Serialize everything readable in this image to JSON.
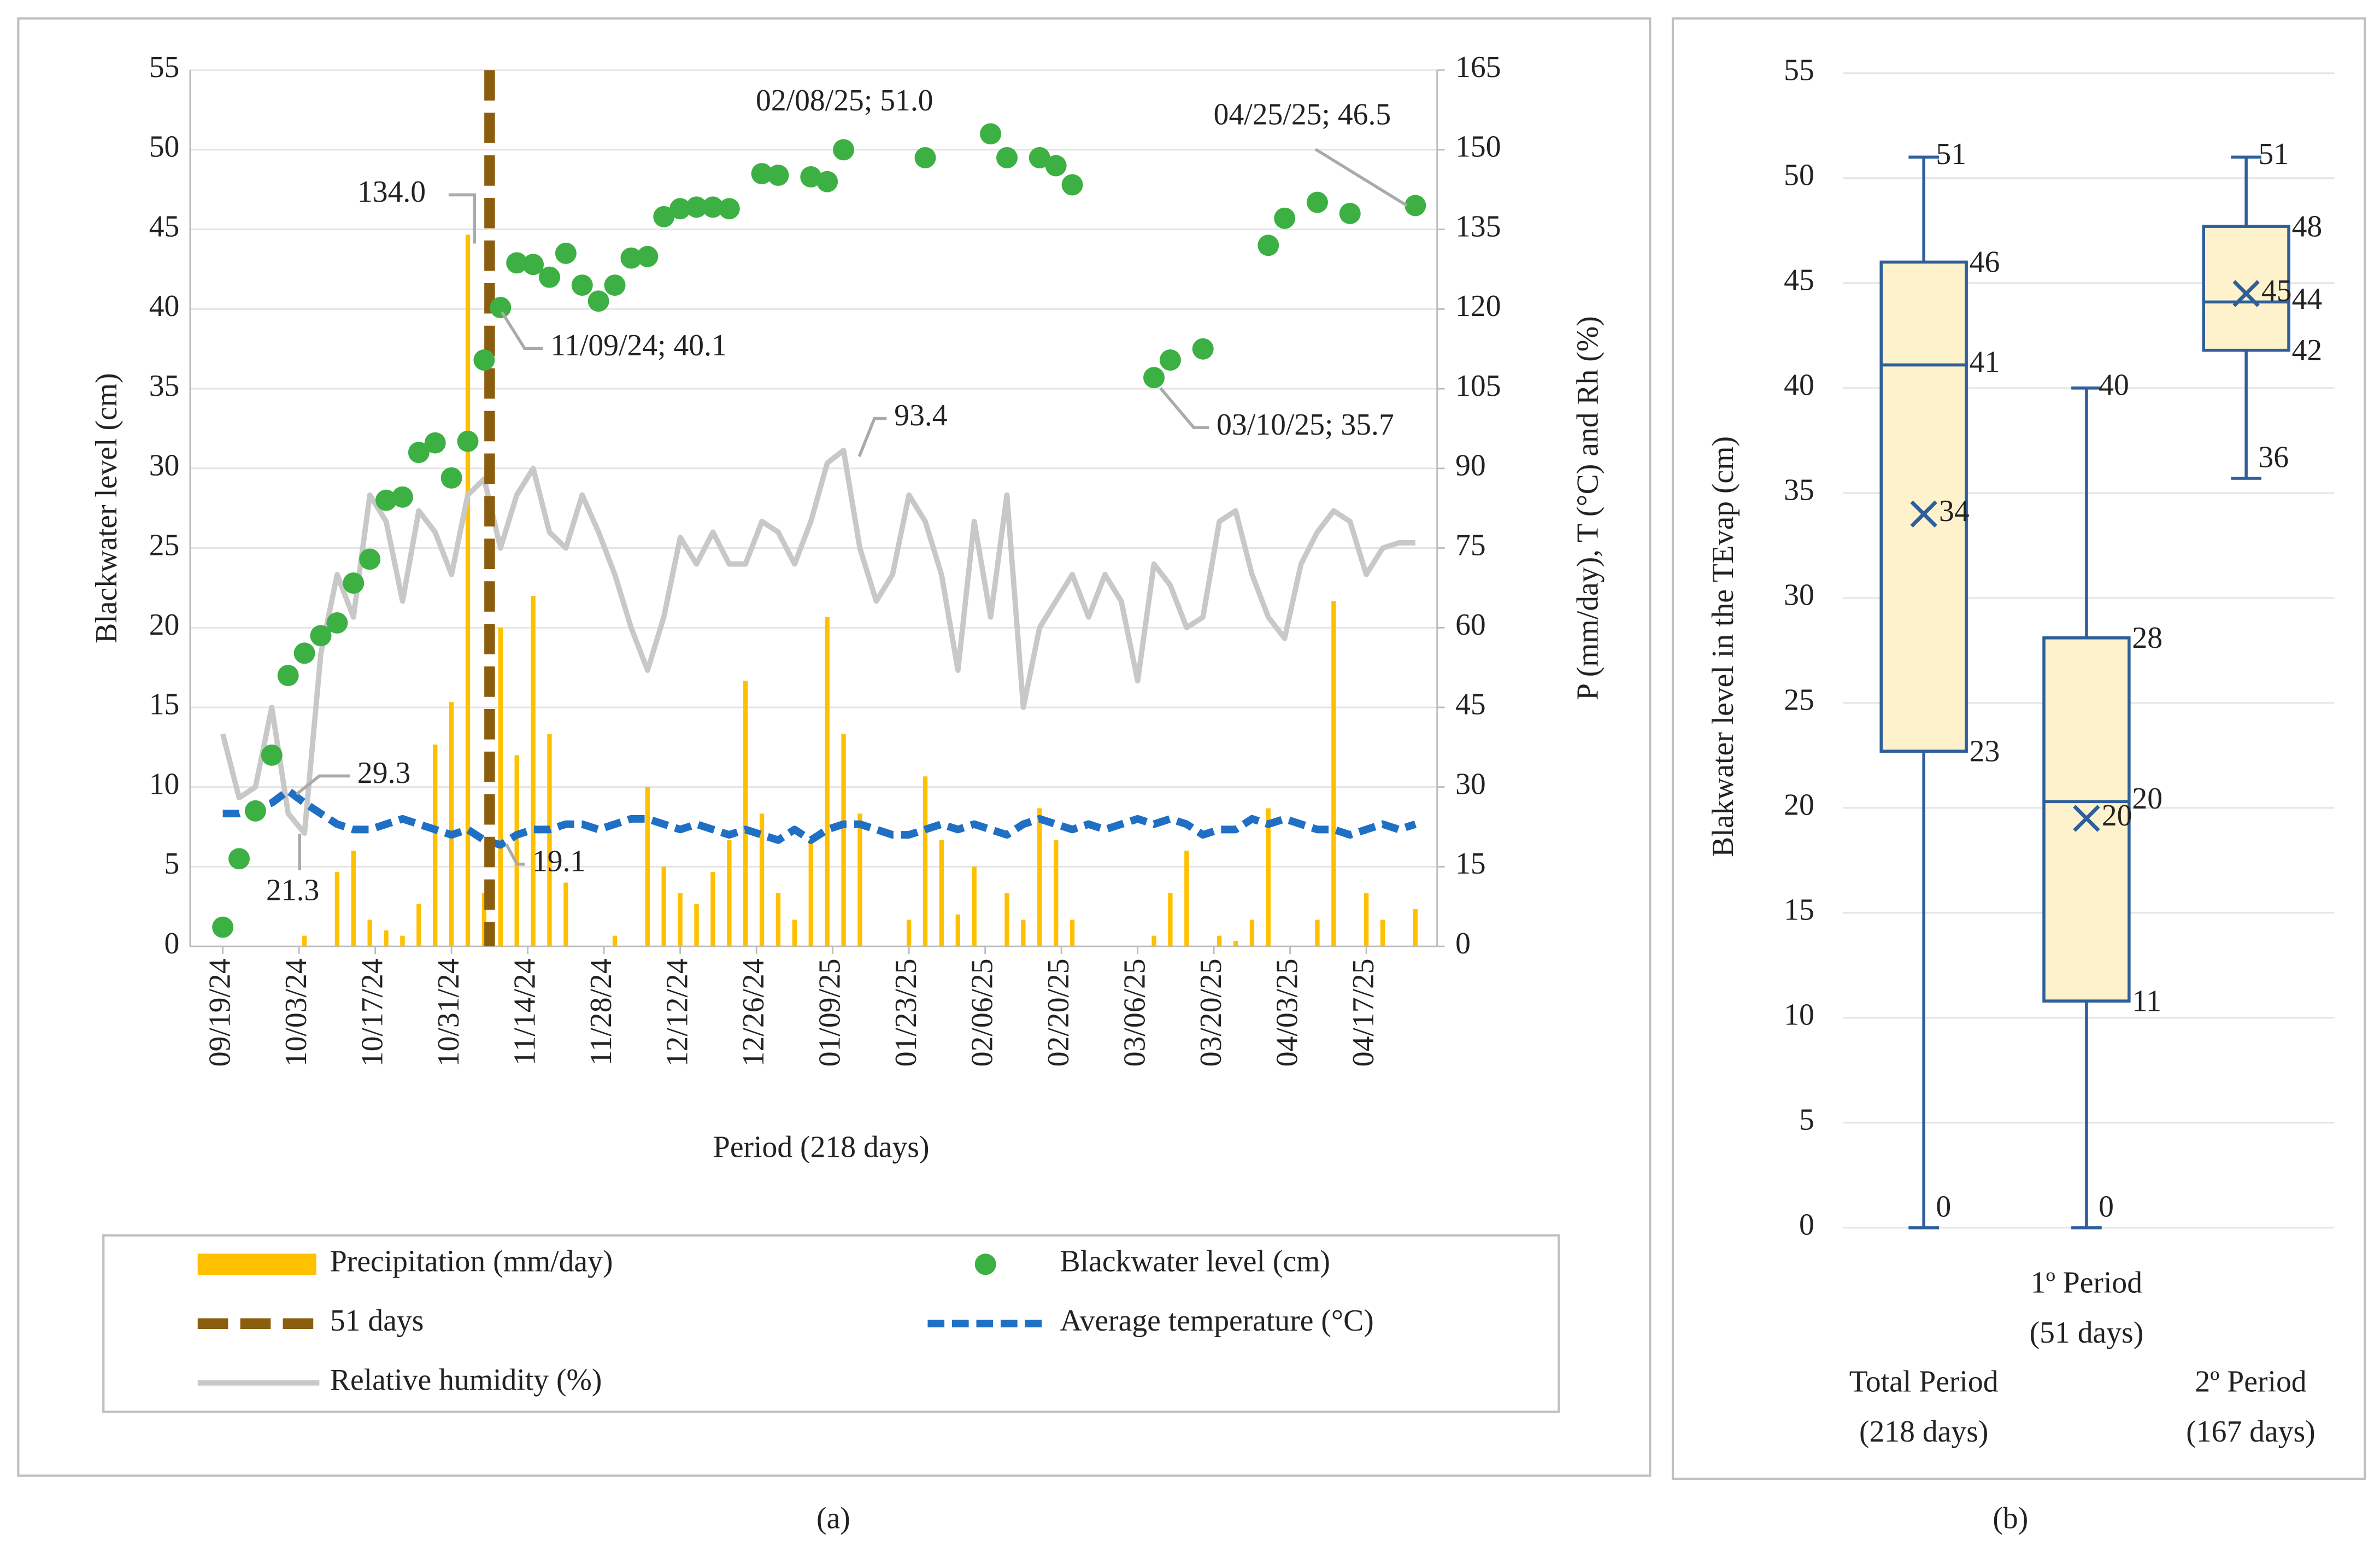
{
  "chart_data": [
    {
      "type": "combo",
      "panel_label": "(a)",
      "xlabel": "Period (218 days)",
      "ylabel": "Blackwater level (cm)",
      "y2label": "P (mm/day), T (°C) and Rh (%)",
      "x": [
        "09/19/24",
        "09/22/24",
        "09/25/24",
        "09/28/24",
        "10/01/24",
        "10/04/24",
        "10/07/24",
        "10/10/24",
        "10/13/24",
        "10/16/24",
        "10/19/24",
        "10/22/24",
        "10/25/24",
        "10/28/24",
        "10/31/24",
        "11/03/24",
        "11/06/24",
        "11/09/24",
        "11/12/24",
        "11/15/24",
        "11/18/24",
        "11/21/24",
        "11/24/24",
        "11/27/24",
        "11/30/24",
        "12/03/24",
        "12/06/24",
        "12/09/24",
        "12/12/24",
        "12/15/24",
        "12/18/24",
        "12/21/24",
        "12/24/24",
        "12/27/24",
        "12/30/24",
        "01/02/25",
        "01/05/25",
        "01/08/25",
        "01/11/25",
        "01/14/25",
        "01/17/25",
        "01/20/25",
        "01/23/25",
        "01/26/25",
        "01/29/25",
        "02/01/25",
        "02/04/25",
        "02/07/25",
        "02/10/25",
        "02/13/25",
        "02/16/25",
        "02/19/25",
        "02/22/25",
        "02/25/25",
        "02/28/25",
        "03/03/25",
        "03/06/25",
        "03/09/25",
        "03/12/25",
        "03/15/25",
        "03/18/25",
        "03/21/25",
        "03/24/25",
        "03/27/25",
        "03/30/25",
        "04/02/25",
        "04/05/25",
        "04/08/25",
        "04/11/25",
        "04/14/25",
        "04/17/25",
        "04/20/25",
        "04/23/25",
        "04/26/25"
      ],
      "xlim": [
        "09/13/24",
        "04/30/25"
      ],
      "xticks": [
        "09/19/24",
        "10/03/24",
        "10/17/24",
        "10/31/24",
        "11/14/24",
        "11/28/24",
        "12/12/24",
        "12/26/24",
        "01/09/25",
        "01/23/25",
        "02/06/25",
        "02/20/25",
        "03/06/25",
        "03/20/25",
        "04/03/25",
        "04/17/25"
      ],
      "ylim": [
        0,
        55
      ],
      "yticks": [
        0,
        5,
        10,
        15,
        20,
        25,
        30,
        35,
        40,
        45,
        50,
        55
      ],
      "y2lim": [
        0,
        165
      ],
      "y2ticks": [
        0,
        15,
        30,
        45,
        60,
        75,
        90,
        105,
        120,
        135,
        150,
        165
      ],
      "grid": true,
      "legend": "bottom",
      "series": [
        {
          "name": "Precipitation (mm/day)",
          "type": "bar",
          "axis": "y2",
          "color": "#ffc000",
          "values": [
            0,
            0,
            0,
            0,
            0,
            2,
            0,
            14,
            18,
            5,
            3,
            2,
            8,
            38,
            46,
            134,
            10,
            60,
            36,
            66,
            40,
            12,
            0,
            0,
            2,
            0,
            30,
            15,
            10,
            8,
            14,
            20,
            50,
            25,
            10,
            5,
            20,
            62,
            40,
            25,
            0,
            0,
            5,
            32,
            20,
            6,
            15,
            0,
            10,
            5,
            26,
            20,
            5,
            0,
            0,
            0,
            0,
            2,
            10,
            18,
            0,
            2,
            1,
            5,
            26,
            0,
            0,
            5,
            65,
            0,
            10,
            5,
            0,
            7
          ]
        },
        {
          "name": "Blackwater level (cm)",
          "type": "scatter",
          "color": "#3cb043",
          "values": [
            1.2,
            5.5,
            8.5,
            12,
            17,
            18.4,
            19.5,
            20.3,
            22.8,
            24.3,
            28,
            28.2,
            31,
            31.6,
            29.4,
            31.7,
            36.8,
            40.1,
            42.9,
            42.8,
            42,
            43.5,
            41.5,
            40.5,
            41.5,
            43.2,
            43.3,
            45.8,
            46.3,
            46.4,
            46.4,
            46.3,
            null,
            48.5,
            48.4,
            null,
            48.3,
            48,
            50,
            null,
            null,
            null,
            null,
            49.5,
            null,
            null,
            null,
            51,
            49.5,
            null,
            49.5,
            49,
            47.8,
            null,
            null,
            null,
            null,
            35.7,
            36.8,
            null,
            37.5,
            null,
            null,
            null,
            44,
            45.7,
            null,
            46.7,
            null,
            46,
            null,
            null,
            null,
            46.5
          ]
        },
        {
          "name": "Average temperature (°C)",
          "type": "line",
          "axis": "y2",
          "color": "#1f6fc5",
          "dash": true,
          "values": [
            25,
            25,
            26,
            27,
            29.3,
            27,
            25,
            23,
            22,
            22,
            23,
            24,
            23,
            22,
            21,
            22,
            20,
            19.1,
            21,
            22,
            22,
            23,
            23,
            22,
            23,
            24,
            24,
            23,
            22,
            23,
            22,
            21,
            22,
            21,
            20,
            22,
            20,
            22,
            23,
            23,
            22,
            21,
            21,
            22,
            23,
            22,
            23,
            22,
            21,
            23,
            24,
            23,
            22,
            23,
            22,
            23,
            24,
            23,
            24,
            23,
            21,
            22,
            22,
            24,
            23,
            24,
            23,
            22,
            22,
            21,
            22,
            23,
            22,
            23
          ]
        },
        {
          "name": "Relative humidity (%)",
          "type": "line",
          "axis": "y2",
          "color": "#c8c8c8",
          "dash": false,
          "values": [
            40,
            28,
            30,
            45,
            25,
            21.3,
            55,
            70,
            62,
            85,
            80,
            65,
            82,
            78,
            70,
            85,
            88,
            75,
            85,
            90,
            78,
            75,
            85,
            78,
            70,
            60,
            52,
            62,
            77,
            72,
            78,
            72,
            72,
            80,
            78,
            72,
            80,
            91,
            93.4,
            75,
            65,
            70,
            85,
            80,
            70,
            52,
            80,
            62,
            85,
            45,
            60,
            65,
            70,
            62,
            70,
            65,
            50,
            72,
            68,
            60,
            62,
            80,
            82,
            70,
            62,
            58,
            72,
            78,
            82,
            80,
            70,
            75,
            76,
            76
          ]
        }
      ],
      "marker_line": {
        "name": "51 days",
        "x": "11/07/24",
        "color": "#8b5e0f"
      },
      "annotations": [
        "134.0",
        "11/09/24; 40.1",
        "93.4",
        "02/08/25; 51.0",
        "04/25/25; 46.5",
        "03/10/25; 35.7",
        "29.3",
        "21.3",
        "19.1"
      ]
    },
    {
      "type": "box",
      "panel_label": "(b)",
      "ylabel": "Blakwater level in the TEvap (cm)",
      "ylim": [
        0,
        55
      ],
      "yticks": [
        0,
        5,
        10,
        15,
        20,
        25,
        30,
        35,
        40,
        45,
        50,
        55
      ],
      "grid": true,
      "color": "#fdf2cc",
      "line_color": "#2e5f9a",
      "boxes": [
        {
          "category": [
            "Total Period",
            "(218 days)"
          ],
          "min": 0,
          "q1": 22.7,
          "median": 41.1,
          "q3": 46,
          "max": 51,
          "mean": 34,
          "value_labels": {
            "q1": "23",
            "median": "41"
          }
        },
        {
          "category": [
            "1º Period",
            "(51 days)"
          ],
          "min": 0,
          "q1": 10.8,
          "median": 20.3,
          "q3": 28.1,
          "max": 40,
          "mean": 19.5,
          "value_labels": {
            "q1": "11",
            "median": "20",
            "q3": "28",
            "mean": "20"
          }
        },
        {
          "category": [
            "2º Period",
            "(167 days)"
          ],
          "min": 35.7,
          "q1": 41.8,
          "median": 44.1,
          "q3": 47.7,
          "max": 51,
          "mean": 44.5,
          "value_labels": {
            "min": "36",
            "q1": "42",
            "median": "44",
            "q3": "48",
            "mean": "45"
          }
        }
      ]
    }
  ]
}
